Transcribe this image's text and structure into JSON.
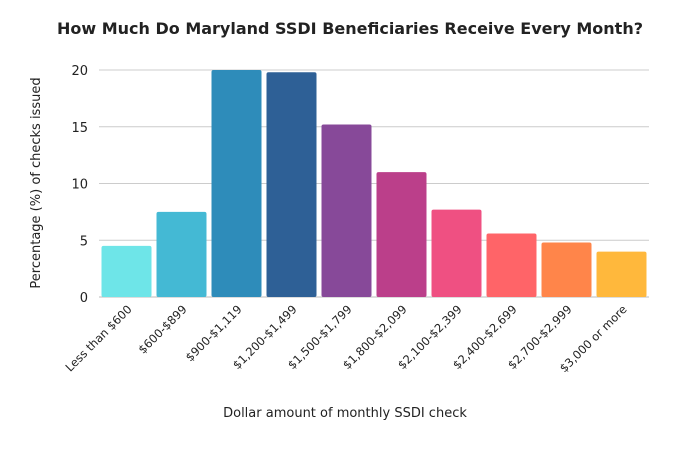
{
  "chart_data": {
    "type": "bar",
    "title": "How Much Do Maryland SSDI Beneficiaries Receive Every Month?",
    "xlabel": "Dollar amount of monthly SSDI check",
    "ylabel": "Percentage (%) of checks issued",
    "ylim": [
      0,
      20
    ],
    "yticks": [
      0,
      5,
      10,
      15,
      20
    ],
    "grid": true,
    "categories": [
      "Less than $600",
      "$600-$899",
      "$900-$1,119",
      "$1,200-$1,499",
      "$1,500-$1,799",
      "$1,800-$2,099",
      "$2,100-$2,399",
      "$2,400-$2,699",
      "$2,700-$2,999",
      "$3,000 or more"
    ],
    "values": [
      4.5,
      7.5,
      20.0,
      19.8,
      15.2,
      11.0,
      7.7,
      5.6,
      4.8,
      4.0
    ],
    "colors": [
      "#6ee5e8",
      "#44b9d4",
      "#2e8cba",
      "#2e6096",
      "#874999",
      "#bb3f8a",
      "#ef5082",
      "#ff6468",
      "#ff854a",
      "#ffb83c"
    ]
  }
}
